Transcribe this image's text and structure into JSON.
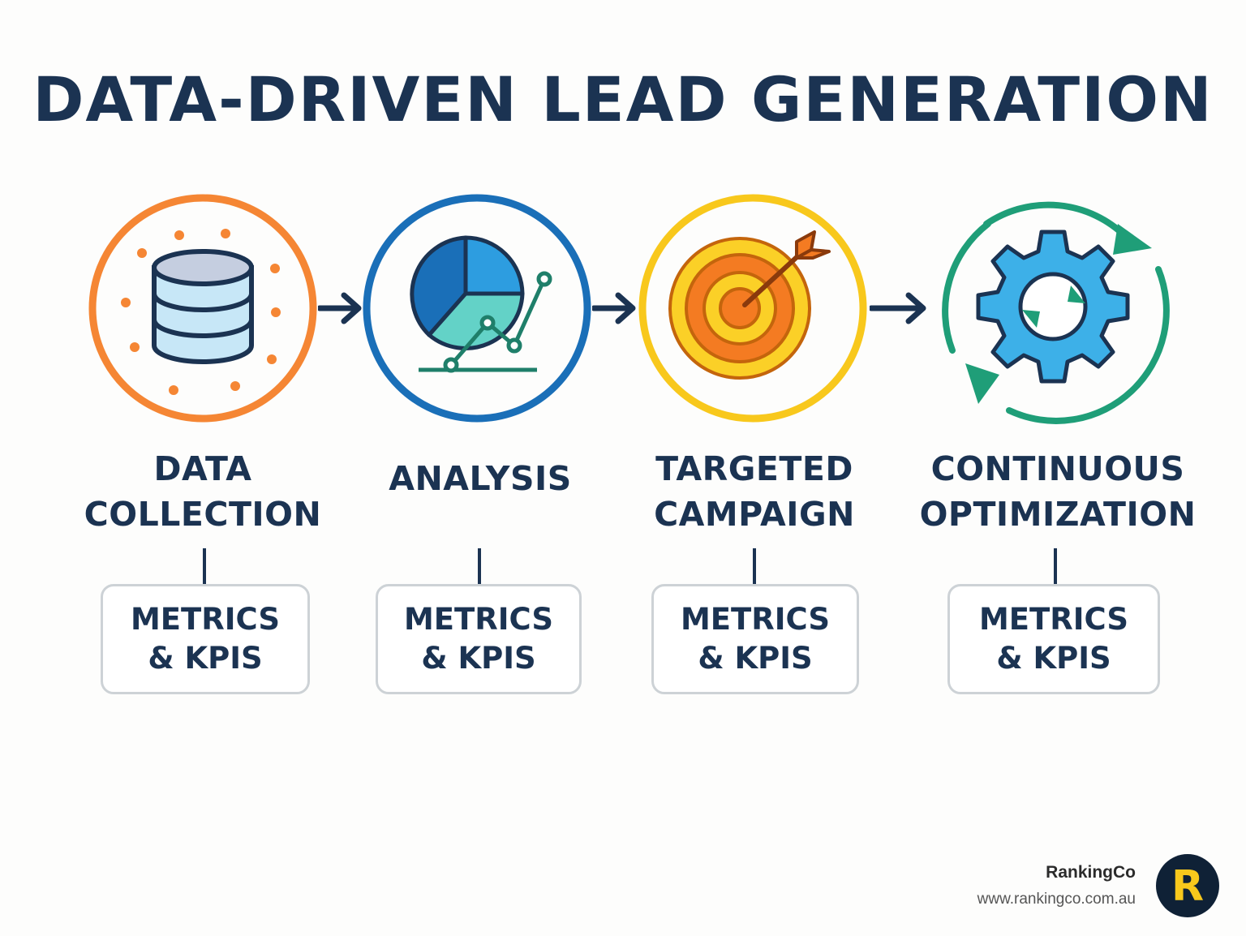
{
  "title": "DATA-DRIVEN LEAD GENERATION",
  "steps": [
    {
      "label": "DATA\nCOLLECTION",
      "icon": "database-icon",
      "color": "#f58634",
      "kpi": "METRICS\n& KPIS"
    },
    {
      "label": "ANALYSIS",
      "icon": "pie-chart-icon",
      "color": "#1a6fb8",
      "kpi": "METRICS\n& KPIS"
    },
    {
      "label": "TARGETED\nCAMPAIGN",
      "icon": "target-icon",
      "color": "#f8c81c",
      "kpi": "METRICS\n& KPIS"
    },
    {
      "label": "CONTINUOUS\nOPTIMIZATION",
      "icon": "gear-cycle-icon",
      "color": "#1f9e78",
      "kpi": "METRICS\n& KPIS"
    }
  ],
  "brand": {
    "name": "RankingCo",
    "url": "www.rankingco.com.au",
    "logo_letter": "R",
    "logo_bg": "#0f2136",
    "logo_color": "#f8c81c"
  }
}
